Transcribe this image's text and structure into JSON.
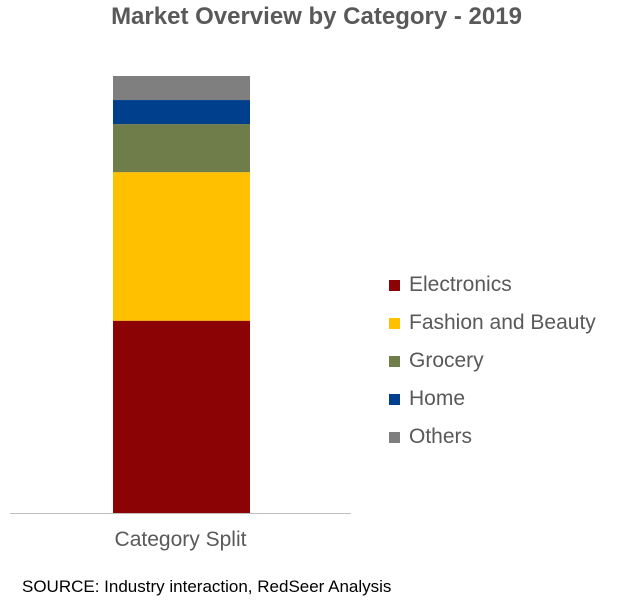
{
  "chart_data": {
    "type": "bar",
    "stacked": true,
    "orientation": "vertical",
    "title": "Market Overview by Category - 2019",
    "categories": [
      "Category Split"
    ],
    "series": [
      {
        "name": "Electronics",
        "values": [
          44
        ],
        "color": "#8B0304"
      },
      {
        "name": "Fashion and Beauty",
        "values": [
          34
        ],
        "color": "#FFC000"
      },
      {
        "name": "Grocery",
        "values": [
          11
        ],
        "color": "#6F7D4A"
      },
      {
        "name": "Home",
        "values": [
          5.5
        ],
        "color": "#003F8C"
      },
      {
        "name": "Others",
        "values": [
          5.5
        ],
        "color": "#7F7F7F"
      }
    ],
    "ylim": [
      0,
      100
    ],
    "grid": false,
    "legend_position": "right"
  },
  "source": "SOURCE: Industry interaction, RedSeer Analysis"
}
